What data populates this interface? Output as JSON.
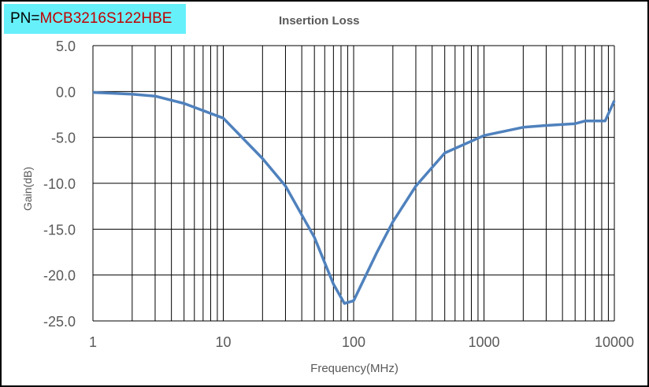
{
  "part_number": {
    "prefix": "PN=",
    "value": "MCB3216S122HBE"
  },
  "chart_data": {
    "type": "line",
    "title": "Insertion Loss",
    "xlabel": "Frequency(MHz)",
    "ylabel": "Gain(dB)",
    "xscale": "log",
    "xlim": [
      1,
      10000
    ],
    "ylim": [
      -25,
      5
    ],
    "xticks": [
      "1",
      "10",
      "100",
      "1000",
      "10000"
    ],
    "yticks": [
      "5.0",
      "0.0",
      "-5.0",
      "-10.0",
      "-15.0",
      "-20.0",
      "-25.0"
    ],
    "grid": true,
    "line_color": "#4f81bd",
    "x": [
      1,
      2,
      3,
      5,
      10,
      20,
      30,
      50,
      70,
      85,
      100,
      150,
      200,
      300,
      500,
      1000,
      2000,
      3000,
      5000,
      6000,
      8500,
      10000
    ],
    "y": [
      -0.1,
      -0.3,
      -0.5,
      -1.3,
      -2.9,
      -7.3,
      -10.3,
      -15.9,
      -21,
      -23.1,
      -22.8,
      -17.6,
      -14.2,
      -10.3,
      -6.7,
      -4.8,
      -3.9,
      -3.7,
      -3.5,
      -3.2,
      -3.2,
      -1.0
    ]
  }
}
